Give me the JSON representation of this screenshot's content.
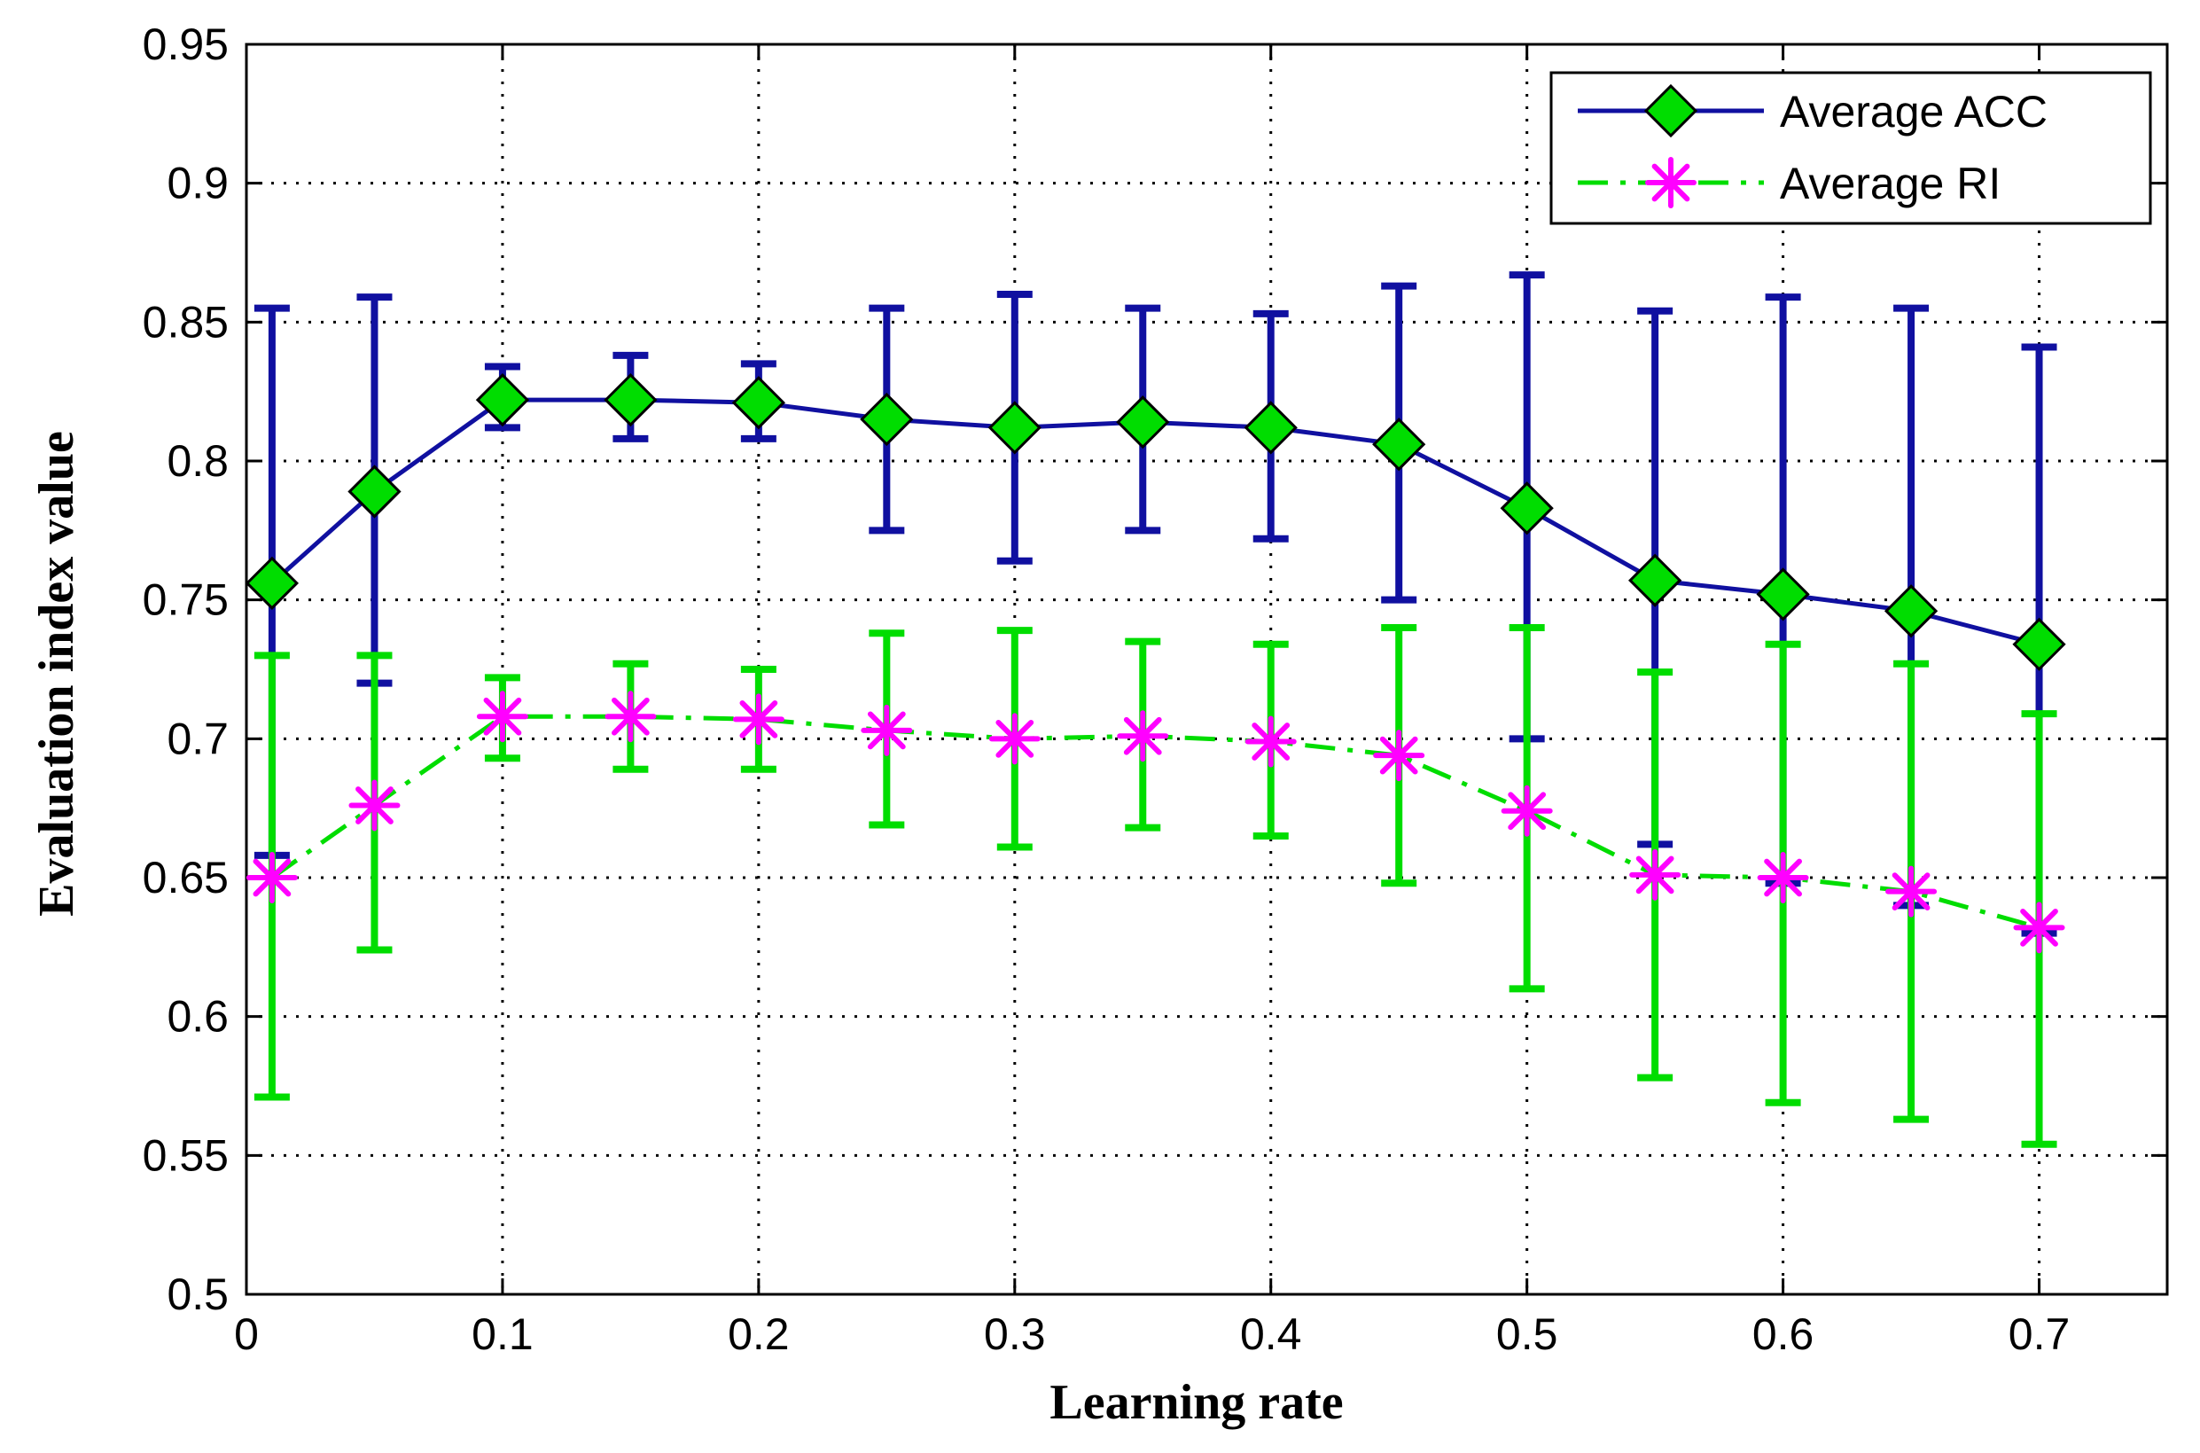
{
  "chart_data": {
    "type": "line",
    "title": "",
    "xlabel": "Learning rate",
    "ylabel": "Evaluation index value",
    "xlim": [
      0,
      0.75
    ],
    "ylim": [
      0.5,
      0.95
    ],
    "grid": true,
    "legend_position": "top-right",
    "x_ticks": [
      0,
      0.1,
      0.2,
      0.3,
      0.4,
      0.5,
      0.6,
      0.7
    ],
    "x_tick_labels": [
      "0",
      "0.1",
      "0.2",
      "0.3",
      "0.4",
      "0.5",
      "0.6",
      "0.7"
    ],
    "y_ticks": [
      0.5,
      0.55,
      0.6,
      0.65,
      0.7,
      0.75,
      0.8,
      0.85,
      0.9,
      0.95
    ],
    "y_tick_labels": [
      "0.5",
      "0.55",
      "0.6",
      "0.65",
      "0.7",
      "0.75",
      "0.8",
      "0.85",
      "0.9",
      "0.95"
    ],
    "x": [
      0.01,
      0.05,
      0.1,
      0.15,
      0.2,
      0.25,
      0.3,
      0.35,
      0.4,
      0.45,
      0.5,
      0.55,
      0.6,
      0.65,
      0.7
    ],
    "series": [
      {
        "name": "Average ACC",
        "line_color": "#1010a0",
        "marker": "diamond",
        "marker_fill": "#00dd00",
        "error_bar_color": "#1010a0",
        "line_style": "solid",
        "values": [
          0.756,
          0.789,
          0.822,
          0.822,
          0.821,
          0.815,
          0.812,
          0.814,
          0.812,
          0.806,
          0.783,
          0.757,
          0.752,
          0.746,
          0.734
        ],
        "error_low": [
          0.658,
          0.72,
          0.812,
          0.808,
          0.808,
          0.775,
          0.764,
          0.775,
          0.772,
          0.75,
          0.7,
          0.662,
          0.648,
          0.64,
          0.63
        ],
        "error_high": [
          0.855,
          0.859,
          0.834,
          0.838,
          0.835,
          0.855,
          0.86,
          0.855,
          0.853,
          0.863,
          0.867,
          0.854,
          0.859,
          0.855,
          0.841
        ]
      },
      {
        "name": "Average RI",
        "line_color": "#00dd00",
        "marker": "asterisk",
        "marker_color": "#ff00ff",
        "error_bar_color": "#00dd00",
        "line_style": "dash-dot",
        "values": [
          0.65,
          0.676,
          0.708,
          0.708,
          0.707,
          0.703,
          0.7,
          0.701,
          0.699,
          0.694,
          0.674,
          0.651,
          0.65,
          0.645,
          0.632
        ],
        "error_low": [
          0.571,
          0.624,
          0.693,
          0.689,
          0.689,
          0.669,
          0.661,
          0.668,
          0.665,
          0.648,
          0.61,
          0.578,
          0.569,
          0.563,
          0.554
        ],
        "error_high": [
          0.73,
          0.73,
          0.722,
          0.727,
          0.725,
          0.738,
          0.739,
          0.735,
          0.734,
          0.74,
          0.74,
          0.724,
          0.734,
          0.727,
          0.709
        ]
      }
    ]
  }
}
